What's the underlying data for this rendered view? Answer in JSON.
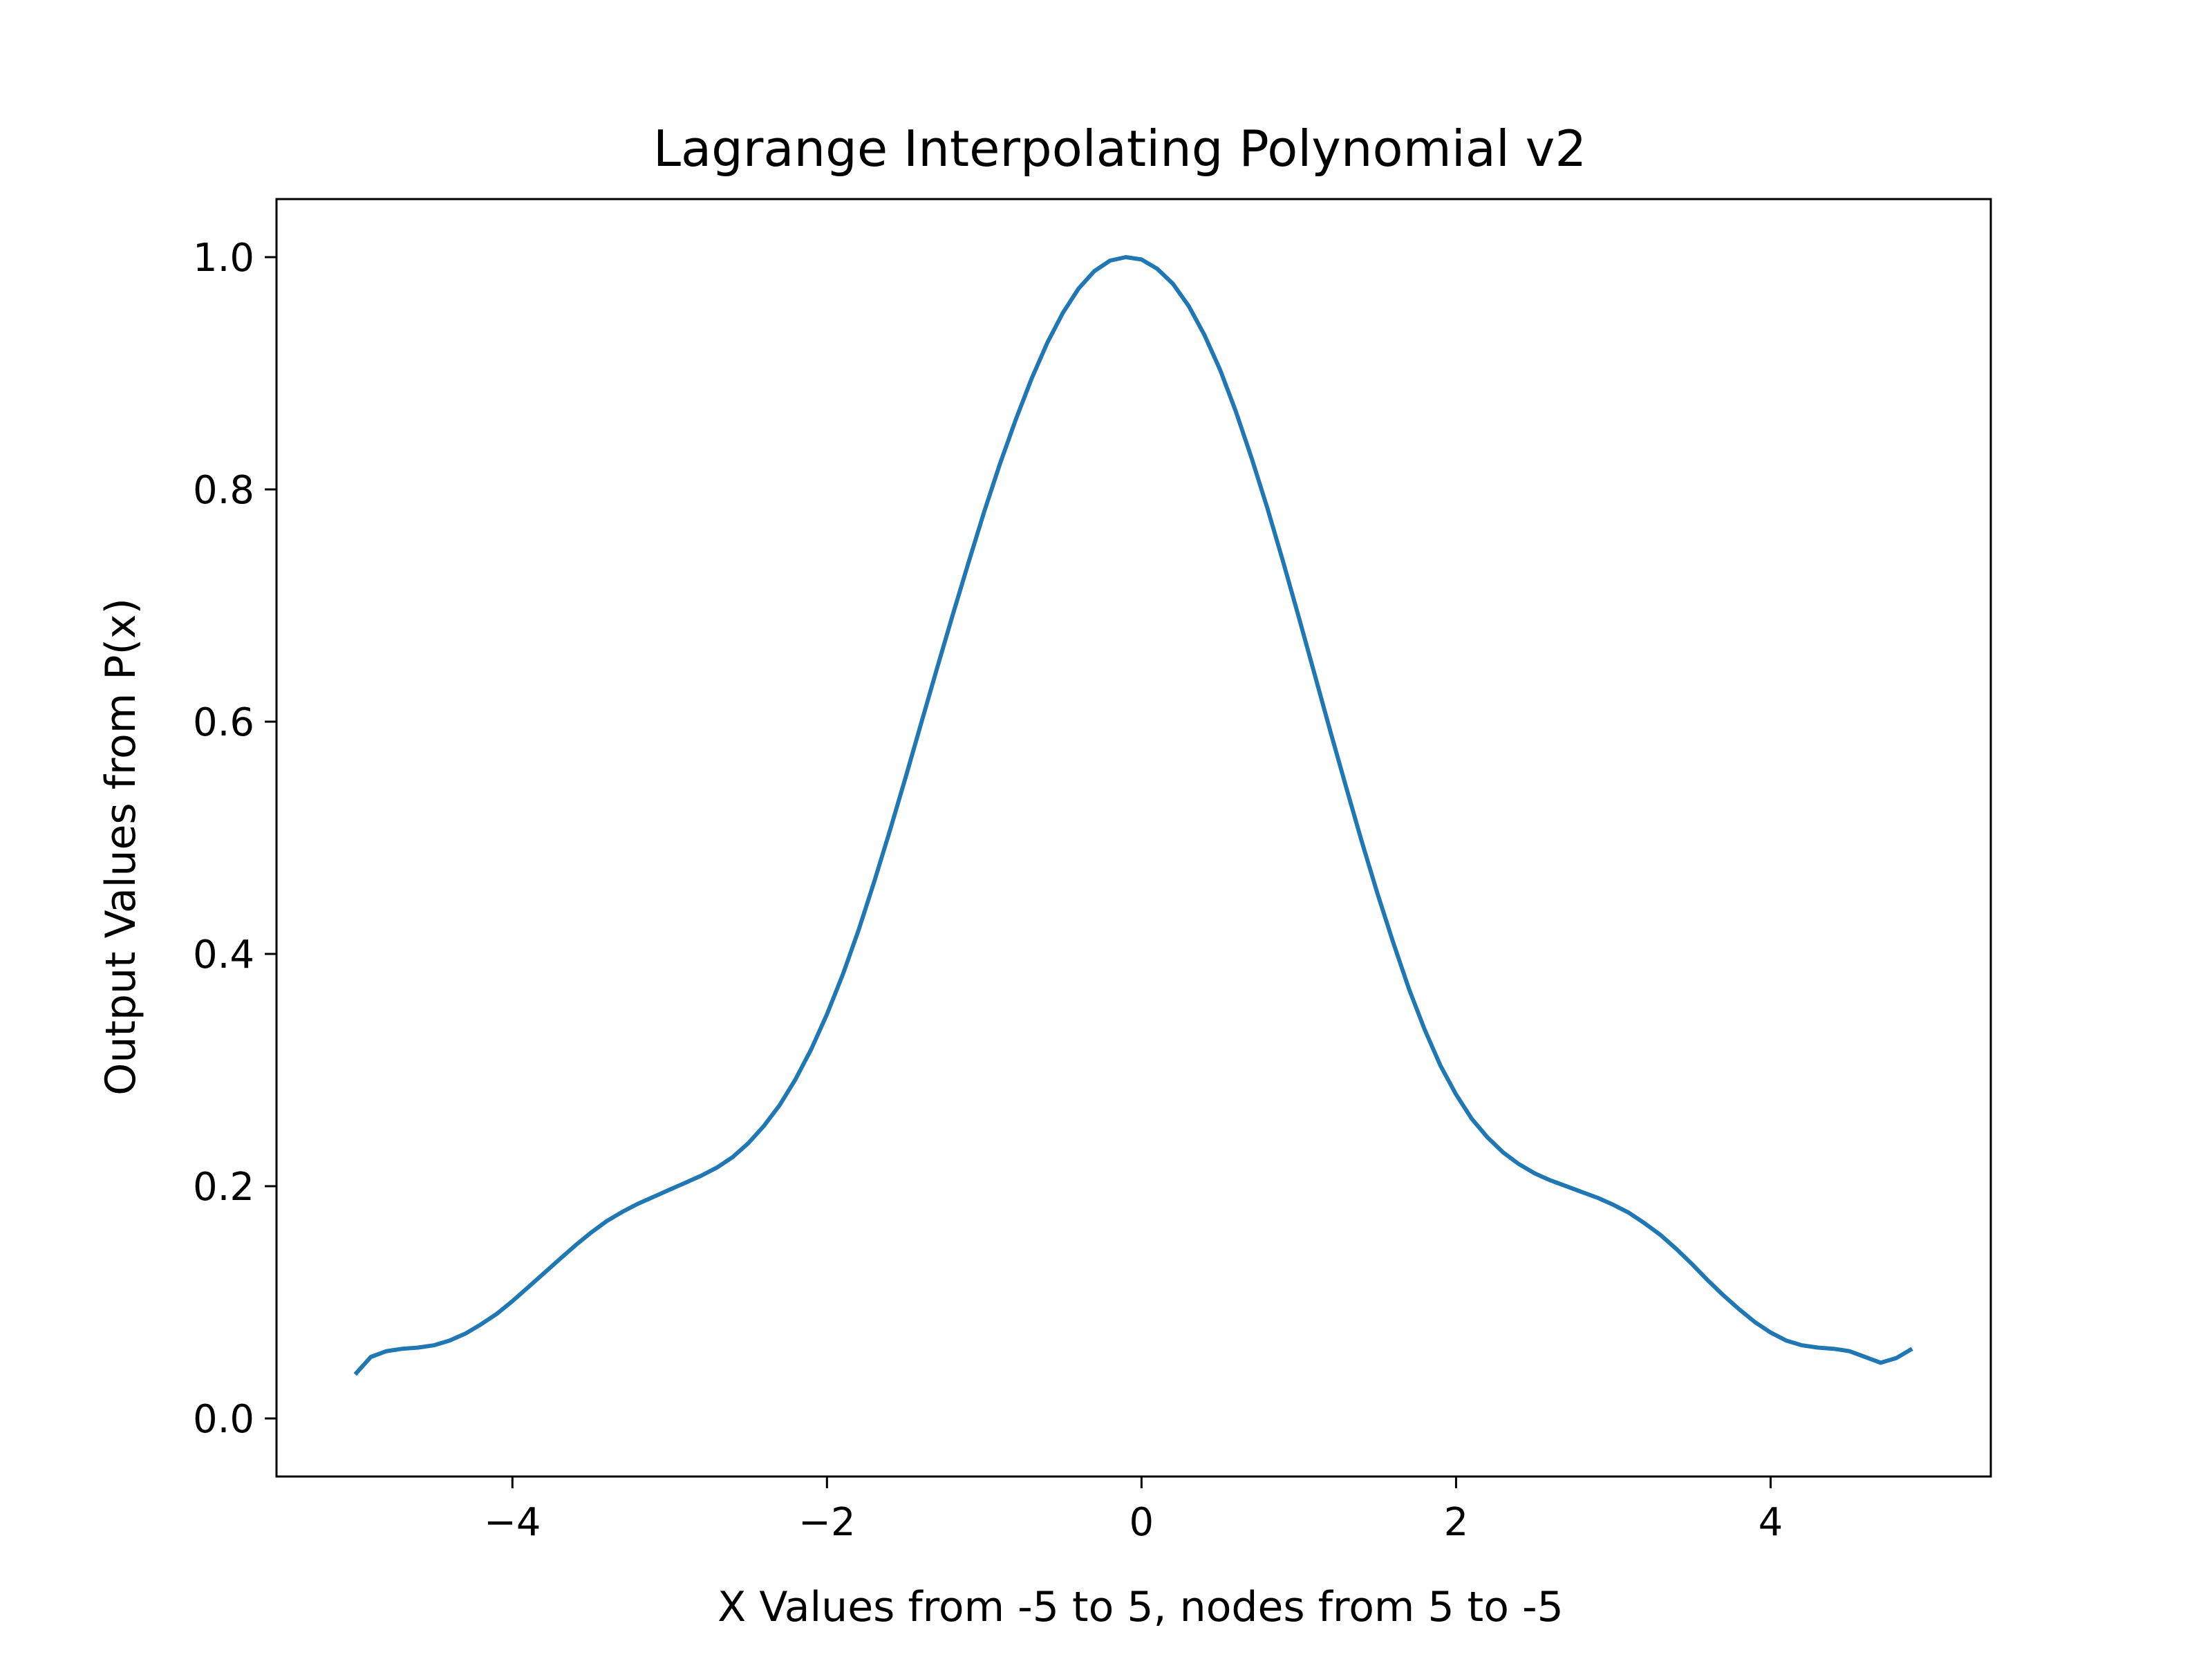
{
  "chart_data": {
    "type": "line",
    "title": "Lagrange Interpolating Polynomial v2",
    "xlabel": "X Values from -5 to 5, nodes from 5 to -5",
    "ylabel": "Output Values from P(x)",
    "xlim": [
      -5.5,
      5.4
    ],
    "ylim": [
      -0.05,
      1.05
    ],
    "xticks": [
      -4,
      -2,
      0,
      2,
      4
    ],
    "xtick_labels": [
      "−4",
      "−2",
      "0",
      "2",
      "4"
    ],
    "yticks": [
      0.0,
      0.2,
      0.4,
      0.6,
      0.8,
      1.0
    ],
    "ytick_labels": [
      "0.0",
      "0.2",
      "0.4",
      "0.6",
      "0.8",
      "1.0"
    ],
    "grid": false,
    "color": "#1f77b4",
    "series": [
      {
        "x": [
          -5.0,
          -4.9,
          -4.8,
          -4.7,
          -4.6,
          -4.5,
          -4.4,
          -4.3,
          -4.2,
          -4.1,
          -4.0,
          -3.9,
          -3.8,
          -3.7,
          -3.6,
          -3.5,
          -3.4,
          -3.3,
          -3.2,
          -3.1,
          -3.0,
          -2.9,
          -2.8,
          -2.7,
          -2.6,
          -2.5,
          -2.4,
          -2.3,
          -2.2,
          -2.1,
          -2.0,
          -1.9,
          -1.8,
          -1.7,
          -1.6,
          -1.5,
          -1.4,
          -1.3,
          -1.2,
          -1.1,
          -1.0,
          -0.9,
          -0.8,
          -0.7,
          -0.6,
          -0.5,
          -0.4,
          -0.3,
          -0.2,
          -0.1,
          0.0,
          0.1,
          0.2,
          0.3,
          0.4,
          0.5,
          0.6,
          0.7,
          0.8,
          0.9,
          1.0,
          1.1,
          1.2,
          1.3,
          1.4,
          1.5,
          1.6,
          1.7,
          1.8,
          1.9,
          2.0,
          2.1,
          2.2,
          2.3,
          2.4,
          2.5,
          2.6,
          2.7,
          2.8,
          2.9,
          3.0,
          3.1,
          3.2,
          3.3,
          3.4,
          3.5,
          3.6,
          3.7,
          3.8,
          3.9,
          4.0,
          4.1,
          4.2,
          4.3,
          4.4,
          4.5,
          4.6,
          4.7,
          4.8,
          4.9
        ],
        "values": [
          0.038,
          0.053,
          0.058,
          0.06,
          0.061,
          0.063,
          0.067,
          0.073,
          0.081,
          0.09,
          0.101,
          0.113,
          0.125,
          0.137,
          0.149,
          0.16,
          0.17,
          0.178,
          0.185,
          0.191,
          0.197,
          0.203,
          0.209,
          0.216,
          0.225,
          0.237,
          0.252,
          0.27,
          0.292,
          0.318,
          0.348,
          0.382,
          0.42,
          0.462,
          0.506,
          0.552,
          0.599,
          0.646,
          0.692,
          0.737,
          0.781,
          0.822,
          0.86,
          0.895,
          0.926,
          0.952,
          0.973,
          0.988,
          0.997,
          1.0,
          0.998,
          0.99,
          0.977,
          0.958,
          0.933,
          0.903,
          0.867,
          0.827,
          0.784,
          0.738,
          0.69,
          0.641,
          0.592,
          0.544,
          0.497,
          0.452,
          0.41,
          0.37,
          0.335,
          0.304,
          0.279,
          0.258,
          0.242,
          0.229,
          0.219,
          0.211,
          0.205,
          0.2,
          0.195,
          0.19,
          0.184,
          0.177,
          0.168,
          0.158,
          0.146,
          0.133,
          0.119,
          0.106,
          0.094,
          0.083,
          0.074,
          0.067,
          0.063,
          0.061,
          0.06,
          0.058,
          0.053,
          0.048,
          0.052,
          0.06
        ]
      }
    ]
  }
}
